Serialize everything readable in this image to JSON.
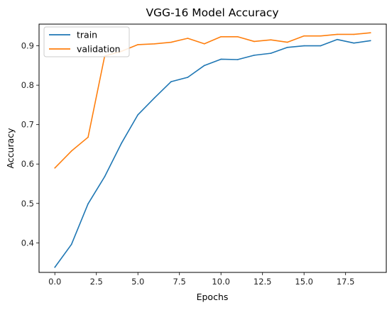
{
  "chart_data": {
    "type": "line",
    "title": "VGG-16 Model Accuracy",
    "xlabel": "Epochs",
    "ylabel": "Accuracy",
    "xlim": [
      -0.95,
      19.95
    ],
    "ylim": [
      0.325,
      0.955
    ],
    "xticks": [
      0.0,
      2.5,
      5.0,
      7.5,
      10.0,
      12.5,
      15.0,
      17.5
    ],
    "xtick_labels": [
      "0.0",
      "2.5",
      "5.0",
      "7.5",
      "10.0",
      "12.5",
      "15.0",
      "17.5"
    ],
    "yticks": [
      0.4,
      0.5,
      0.6,
      0.7,
      0.8,
      0.9
    ],
    "ytick_labels": [
      "0.4",
      "0.5",
      "0.6",
      "0.7",
      "0.8",
      "0.9"
    ],
    "grid": false,
    "legend_position": "top-left",
    "x": [
      0,
      1,
      2,
      3,
      4,
      5,
      6,
      7,
      8,
      9,
      10,
      11,
      12,
      13,
      14,
      15,
      16,
      17,
      18,
      19
    ],
    "series": [
      {
        "name": "train",
        "color": "#1f77b4",
        "values": [
          0.338,
          0.396,
          0.499,
          0.568,
          0.652,
          0.725,
          0.768,
          0.809,
          0.82,
          0.85,
          0.866,
          0.865,
          0.876,
          0.881,
          0.896,
          0.9,
          0.9,
          0.916,
          0.907,
          0.913
        ]
      },
      {
        "name": "validation",
        "color": "#ff7f0e",
        "values": [
          0.59,
          0.633,
          0.668,
          0.874,
          0.886,
          0.903,
          0.905,
          0.909,
          0.919,
          0.905,
          0.923,
          0.923,
          0.911,
          0.915,
          0.909,
          0.925,
          0.925,
          0.929,
          0.929,
          0.933
        ]
      }
    ]
  }
}
